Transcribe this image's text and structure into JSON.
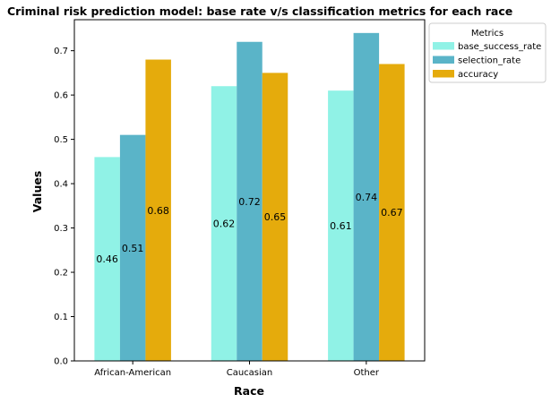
{
  "chart_data": {
    "type": "bar",
    "title": "Criminal risk prediction model: base rate v/s classification metrics for each race",
    "xlabel": "Race",
    "ylabel": "Values",
    "categories": [
      "African-American",
      "Caucasian",
      "Other"
    ],
    "series": [
      {
        "name": "base_success_rate",
        "values": [
          0.46,
          0.62,
          0.61
        ],
        "color": "#90f2e6",
        "labels": [
          "0.46",
          "0.62",
          "0.61"
        ]
      },
      {
        "name": "selection_rate",
        "values": [
          0.51,
          0.72,
          0.74
        ],
        "color": "#5ab4c8",
        "labels": [
          "0.51",
          "0.72",
          "0.74"
        ]
      },
      {
        "name": "accuracy",
        "values": [
          0.68,
          0.65,
          0.67
        ],
        "color": "#e5ab0c",
        "labels": [
          "0.68",
          "0.65",
          "0.67"
        ]
      }
    ],
    "ylim": [
      0,
      0.77
    ],
    "yticks": [
      0.0,
      0.1,
      0.2,
      0.3,
      0.4,
      0.5,
      0.6,
      0.7
    ],
    "ytick_labels": [
      "0.0",
      "0.1",
      "0.2",
      "0.3",
      "0.4",
      "0.5",
      "0.6",
      "0.7"
    ],
    "legend": {
      "title": "Metrics",
      "placement": "outside-top-right"
    },
    "grid": false
  }
}
